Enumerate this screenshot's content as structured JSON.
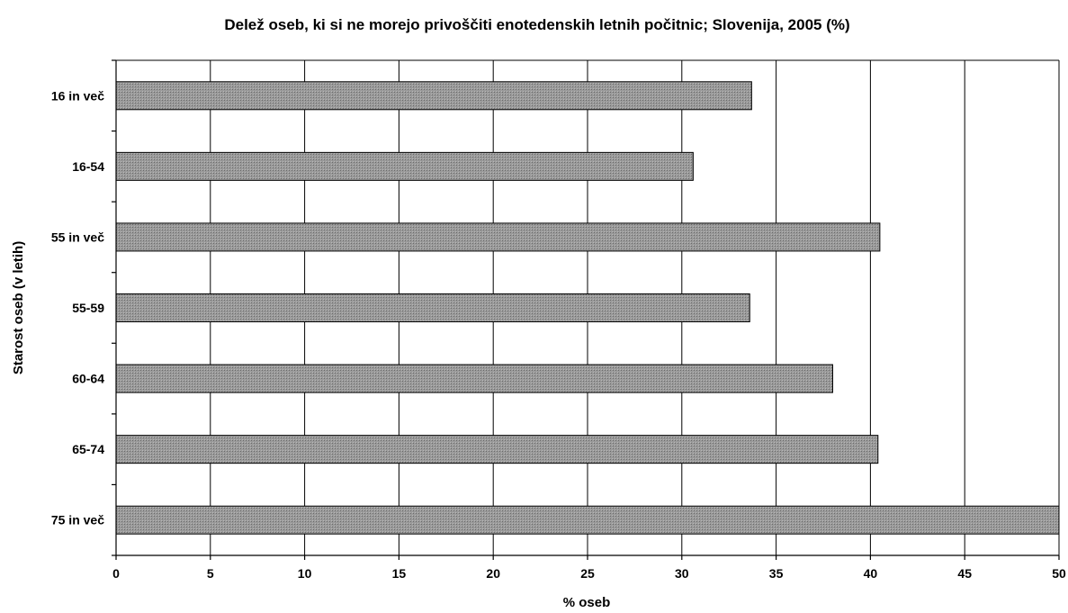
{
  "chart_data": {
    "type": "bar",
    "orientation": "horizontal",
    "title": "Delež oseb, ki si ne morejo privoščiti enotedenskih letnih počitnic; Slovenija, 2005 (%)",
    "xlabel": "% oseb",
    "ylabel": "Starost oseb (v letih)",
    "categories": [
      "16 in več",
      "16-54",
      "55 in več",
      "55-59",
      "60-64",
      "65-74",
      "75 in več"
    ],
    "values": [
      33.7,
      30.6,
      40.5,
      33.6,
      38.0,
      40.4,
      50.0
    ],
    "xlim": [
      0,
      50
    ],
    "xticks": [
      0,
      5,
      10,
      15,
      20,
      25,
      30,
      35,
      40,
      45,
      50
    ],
    "grid": "vertical",
    "legend": "none",
    "bar_color": "#8c8c8c"
  }
}
